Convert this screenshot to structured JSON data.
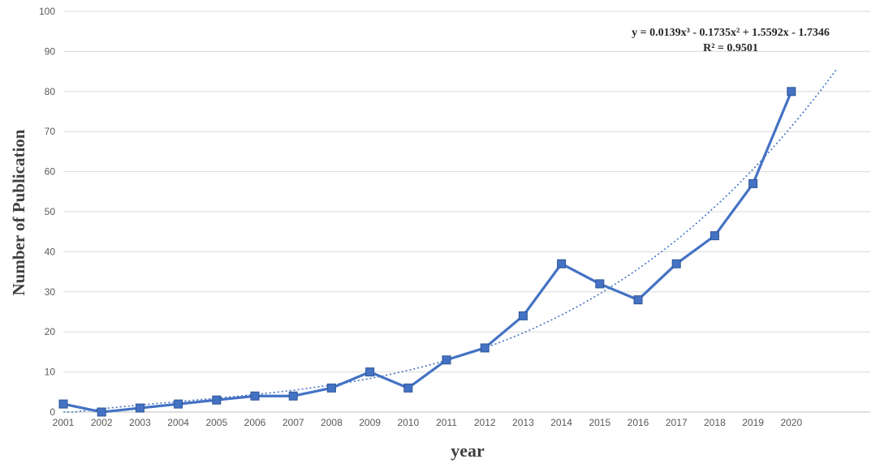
{
  "chart_data": {
    "type": "line",
    "title": "",
    "xlabel": "year",
    "ylabel": "Number of Publication",
    "x": [
      "2001",
      "2002",
      "2003",
      "2004",
      "2005",
      "2006",
      "2007",
      "2008",
      "2009",
      "2010",
      "2011",
      "2012",
      "2013",
      "2014",
      "2015",
      "2016",
      "2017",
      "2018",
      "2019",
      "2020"
    ],
    "series": [
      {
        "values": [
          2,
          0,
          1,
          2,
          3,
          4,
          4,
          6,
          10,
          6,
          13,
          16,
          24,
          37,
          32,
          28,
          37,
          44,
          57,
          80
        ],
        "color": "#4472c4",
        "marker": "square"
      }
    ],
    "trendline": {
      "type": "polynomial",
      "order": 3,
      "coefficients": [
        0.0139,
        -0.1735,
        1.5592,
        -1.7346
      ],
      "style": "dotted",
      "color": "#4472c4",
      "equation": "y = 0.0139x³ - 0.1735x² + 1.5592x - 1.7346",
      "r_squared": "R² = 0.9501"
    },
    "ylim": [
      0,
      100
    ],
    "yticks": [
      "0",
      "10",
      "20",
      "30",
      "40",
      "50",
      "60",
      "70",
      "80",
      "90",
      "100"
    ],
    "grid": true,
    "legend": "none"
  }
}
